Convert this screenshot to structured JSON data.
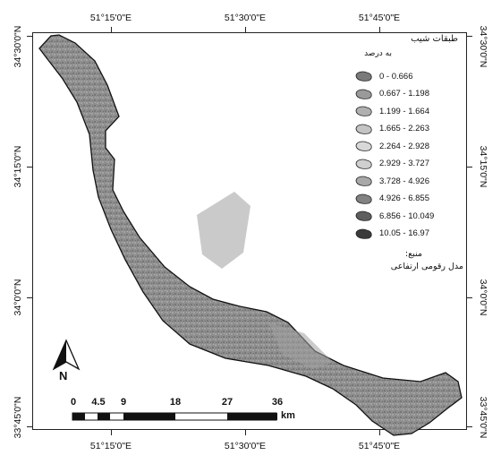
{
  "map": {
    "top_lon_labels": [
      "51°15'0\"E",
      "51°30'0\"E",
      "51°45'0\"E"
    ],
    "bottom_lon_labels": [
      "51°15'0\"E",
      "51°30'0\"E",
      "51°45'0\"E"
    ],
    "left_lat_labels": [
      "34°30'0\"N",
      "34°15'0\"N",
      "34°0'0\"N",
      "33°45'0\"N"
    ],
    "right_lat_labels": [
      "34°30'0\"N",
      "34°15'0\"N",
      "34°0'0\"N",
      "33°45'0\"N"
    ],
    "region_fill": "#8c8c8c"
  },
  "legend": {
    "title": "طبقات شیب",
    "subtitle": "به درصد",
    "items": [
      {
        "label": "0 - 0.666",
        "color": "#7a7a7a"
      },
      {
        "label": "0.667 - 1.198",
        "color": "#9a9a9a"
      },
      {
        "label": "1.199 - 1.664",
        "color": "#b0b0b0"
      },
      {
        "label": "1.665 - 2.263",
        "color": "#c4c4c4"
      },
      {
        "label": "2.264 - 2.928",
        "color": "#d8d8d8"
      },
      {
        "label": "2.929 - 3.727",
        "color": "#cfcfcf"
      },
      {
        "label": "3.728 - 4.926",
        "color": "#a8a8a8"
      },
      {
        "label": "4.926 - 6.855",
        "color": "#828282"
      },
      {
        "label": "6.856 - 10.049",
        "color": "#5e5e5e"
      },
      {
        "label": "10.05 - 16.97",
        "color": "#3a3a3a"
      }
    ],
    "source_label": "منبع:",
    "source_text": "مدل رقومی ارتفاعی"
  },
  "north_arrow": {
    "letter": "N"
  },
  "scale_bar": {
    "ticks": [
      "0",
      "4.5",
      "9",
      "18",
      "27",
      "36"
    ],
    "unit": "km"
  }
}
